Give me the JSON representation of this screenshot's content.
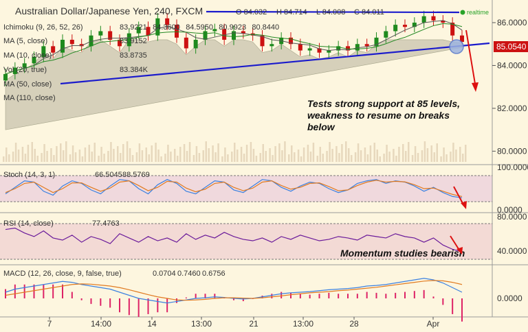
{
  "chart_data": {
    "type": "candlestick",
    "title": "Australian Dollar/Japanese Yen, 240, FXCM",
    "ohlc": {
      "open": "O 84.032",
      "high": "H 84.714",
      "low": "L 84.008",
      "close": "C 84.011"
    },
    "indicators": [
      {
        "label": "Ichimoku (9, 26, 52, 26)",
        "values": "83.9221  84.3600  84.5950  80.9923  80.8440",
        "colors": [
          "#cc0000",
          "#5577cc",
          "#228822",
          "#cc0000",
          "#333333"
        ]
      },
      {
        "label": "MA (5, close)",
        "values": "83.9152",
        "colors": [
          "#333333"
        ]
      },
      {
        "label": "MA (10, close)",
        "values": "83.8735",
        "colors": [
          "#333333"
        ]
      },
      {
        "label": "Vol (20, true)",
        "values": "83.384K",
        "colors": [
          "#336633"
        ]
      },
      {
        "label": "MA (50, close)",
        "values": "",
        "colors": []
      },
      {
        "label": "MA (110, close)",
        "values": "",
        "colors": []
      }
    ],
    "current_price": "85.0540",
    "realtime_label": "realtime",
    "price_axis": {
      "ylim": [
        79.5,
        86.8
      ],
      "ticks": [
        "86.0000",
        "84.0000",
        "82.0000",
        "80.0000"
      ]
    },
    "x_ticks": [
      "7",
      "14:00",
      "14",
      "13:00",
      "21",
      "13:00",
      "28",
      "Apr"
    ],
    "close_series": [
      83.6,
      83.9,
      84.1,
      84.4,
      84.9,
      84.6,
      85.2,
      85.0,
      84.9,
      85.4,
      85.6,
      85.2,
      84.9,
      85.5,
      85.8,
      85.4,
      86.2,
      85.9,
      85.3,
      84.8,
      85.2,
      85.6,
      85.7,
      85.2,
      85.6,
      85.5,
      85.4,
      84.9,
      85.0,
      85.3,
      85.0,
      84.7,
      84.8,
      84.6,
      84.7,
      84.9,
      84.7,
      85.0,
      84.9,
      85.3,
      85.6,
      85.9,
      85.8,
      86.0,
      86.3,
      86.1,
      86.0,
      85.4,
      85.1
    ],
    "resistance_label": "",
    "annotation_main": [
      "Tests strong support at 85 levels,",
      "weakness to resume on breaks",
      "below"
    ],
    "stoch": {
      "label": "Stoch (14, 3, 1)",
      "k": "66.5045",
      "d": "88.5769",
      "ylim": [
        0,
        100
      ],
      "ticks": [
        "100.0000",
        "0.0000"
      ],
      "k_series": [
        30,
        55,
        80,
        75,
        40,
        25,
        60,
        80,
        70,
        45,
        30,
        60,
        85,
        80,
        50,
        30,
        65,
        85,
        70,
        40,
        30,
        55,
        80,
        75,
        45,
        35,
        60,
        85,
        80,
        55,
        40,
        60,
        75,
        70,
        50,
        35,
        45,
        70,
        80,
        85,
        70,
        80,
        75,
        60,
        40,
        55,
        35,
        20,
        15
      ],
      "d_series": [
        35,
        50,
        70,
        75,
        55,
        35,
        50,
        72,
        72,
        55,
        40,
        52,
        75,
        80,
        62,
        42,
        55,
        78,
        75,
        52,
        38,
        48,
        70,
        75,
        55,
        42,
        52,
        75,
        80,
        62,
        48,
        55,
        70,
        72,
        58,
        42,
        45,
        62,
        75,
        82,
        75,
        78,
        76,
        65,
        50,
        52,
        40,
        28,
        20
      ]
    },
    "rsi": {
      "label": "RSI (14, close)",
      "value": "77.4763",
      "ylim": [
        20,
        90
      ],
      "ticks": [
        "80.0000",
        "40.0000"
      ],
      "series": [
        70,
        72,
        65,
        60,
        68,
        58,
        55,
        62,
        52,
        60,
        56,
        50,
        64,
        58,
        52,
        60,
        54,
        58,
        52,
        64,
        56,
        62,
        58,
        66,
        60,
        56,
        54,
        58,
        52,
        60,
        56,
        62,
        58,
        54,
        56,
        60,
        58,
        55,
        62,
        60,
        58,
        64,
        60,
        58,
        52,
        58,
        48,
        42,
        38
      ]
    },
    "macd": {
      "label": "MACD (12, 26, close, 9, false, true)",
      "hist": "0.0704",
      "macd": "0.7460",
      "signal": "0.6756",
      "ticks": [
        "0.0000"
      ],
      "macd_series": [
        0.2,
        0.3,
        0.35,
        0.4,
        0.45,
        0.5,
        0.55,
        0.52,
        0.45,
        0.4,
        0.35,
        0.3,
        0.2,
        0.1,
        0.0,
        -0.05,
        -0.1,
        -0.15,
        -0.1,
        -0.05,
        0.0,
        0.02,
        0.05,
        0.03,
        0.0,
        -0.02,
        0.0,
        0.05,
        0.1,
        0.15,
        0.18,
        0.2,
        0.22,
        0.25,
        0.28,
        0.3,
        0.32,
        0.35,
        0.4,
        0.42,
        0.45,
        0.5,
        0.55,
        0.6,
        0.65,
        0.6,
        0.5,
        0.35,
        0.2
      ],
      "signal_series": [
        0.1,
        0.15,
        0.2,
        0.25,
        0.3,
        0.35,
        0.4,
        0.45,
        0.47,
        0.46,
        0.43,
        0.4,
        0.35,
        0.28,
        0.2,
        0.12,
        0.05,
        0.0,
        -0.05,
        -0.06,
        -0.05,
        -0.03,
        0.0,
        0.02,
        0.02,
        0.01,
        0.0,
        0.02,
        0.05,
        0.08,
        0.12,
        0.15,
        0.18,
        0.2,
        0.22,
        0.25,
        0.27,
        0.3,
        0.33,
        0.36,
        0.4,
        0.44,
        0.48,
        0.52,
        0.56,
        0.58,
        0.57,
        0.52,
        0.45
      ]
    },
    "annotation_momentum": "Momentum studies bearish",
    "colors": {
      "bull": "#1e8a1e",
      "bear": "#cc1111",
      "trend": "#1a1acc",
      "price_badge": "#cc1111",
      "stoch_k": "#3a80e0",
      "stoch_d": "#e07a20",
      "rsi": "#6a1a9a",
      "macd": "#3a80e0",
      "signal": "#e07a20",
      "cloud": "#c9c4ae"
    }
  }
}
